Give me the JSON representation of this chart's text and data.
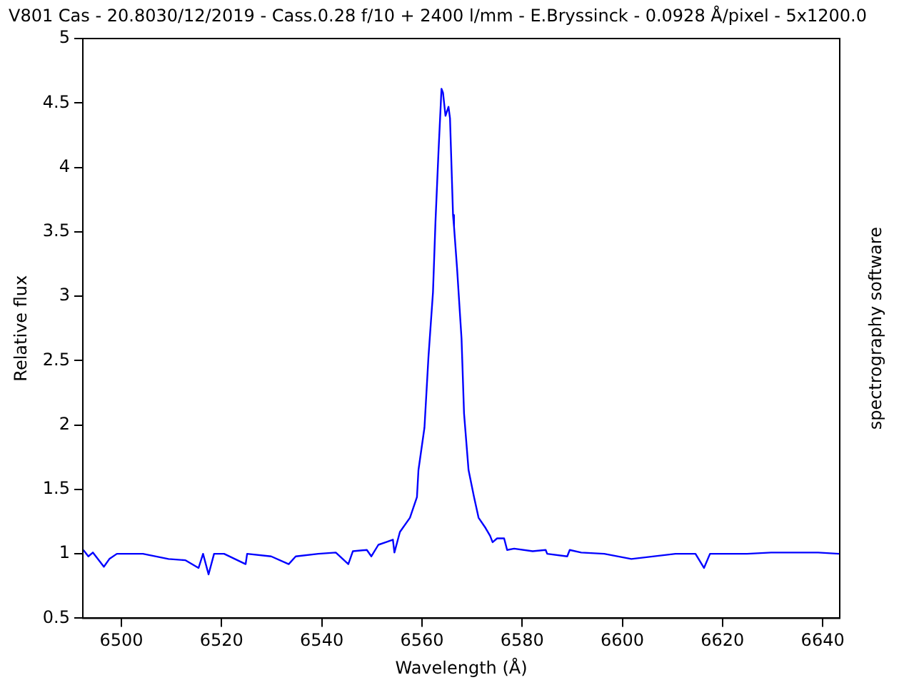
{
  "chart_data": {
    "type": "line",
    "title": "V801 Cas - 20.8030/12/2019 - Cass.0.28 f/10 + 2400 l/mm - E.Bryssinck - 0.0928 Å/pixel - 5x1200.0",
    "xlabel": "Wavelength (Å)",
    "ylabel": "Relative flux",
    "annotations": [
      "spectrography software"
    ],
    "x": [
      6492.4,
      6493.4,
      6494.3,
      6496.5,
      6497.6,
      6499.1,
      6504.3,
      6509.4,
      6512.8,
      6515.4,
      6516.3,
      6517.4,
      6518.5,
      6520.5,
      6524.8,
      6525.1,
      6529.9,
      6533.4,
      6534.8,
      6539.3,
      6542.8,
      6545.3,
      6546.2,
      6549.0,
      6549.9,
      6551.3,
      6552.8,
      6554.2,
      6554.5,
      6555.6,
      6557.6,
      6559.0,
      6559.3,
      6560.5,
      6561.3,
      6562.2,
      6562.7,
      6563.3,
      6563.9,
      6564.2,
      6564.7,
      6565.3,
      6565.6,
      6566.2,
      6566.4,
      6567.0,
      6567.9,
      6568.4,
      6569.3,
      6570.4,
      6571.3,
      6572.7,
      6573.6,
      6574.1,
      6575.0,
      6576.4,
      6577.0,
      6578.4,
      6582.1,
      6584.7,
      6585.0,
      6589.0,
      6589.5,
      6591.8,
      6596.4,
      6601.8,
      6610.6,
      6614.6,
      6616.3,
      6617.5,
      6624.9,
      6629.7,
      6639.1,
      6643.3
    ],
    "series": [
      {
        "color": "#0000ff",
        "values": [
          1.03,
          0.98,
          1.01,
          0.9,
          0.96,
          1.0,
          1.0,
          0.96,
          0.95,
          0.89,
          1.0,
          0.84,
          1.0,
          1.0,
          0.92,
          1.0,
          0.98,
          0.92,
          0.98,
          1.0,
          1.01,
          0.92,
          1.02,
          1.03,
          0.98,
          1.07,
          1.09,
          1.11,
          1.01,
          1.17,
          1.28,
          1.44,
          1.65,
          1.98,
          2.53,
          3.03,
          3.58,
          4.12,
          4.61,
          4.58,
          4.4,
          4.47,
          4.38,
          3.63,
          3.54,
          3.22,
          2.67,
          2.09,
          1.65,
          1.44,
          1.28,
          1.2,
          1.14,
          1.09,
          1.12,
          1.12,
          1.03,
          1.04,
          1.02,
          1.03,
          1.0,
          0.98,
          1.03,
          1.01,
          1.0,
          0.96,
          1.0,
          1.0,
          0.89,
          1.0,
          1.0,
          1.01,
          1.01,
          1.0
        ]
      }
    ],
    "xlim": [
      6492.3,
      6643.4
    ],
    "xticks": [
      6500,
      6520,
      6540,
      6560,
      6580,
      6600,
      6620,
      6640
    ],
    "ylim": [
      0.5,
      5
    ],
    "yticks": [
      0.5,
      1,
      1.5,
      2,
      2.5,
      3,
      3.5,
      4,
      4.5,
      5
    ],
    "grid": false,
    "legend": false,
    "marker": "none",
    "line_style": "solid"
  }
}
